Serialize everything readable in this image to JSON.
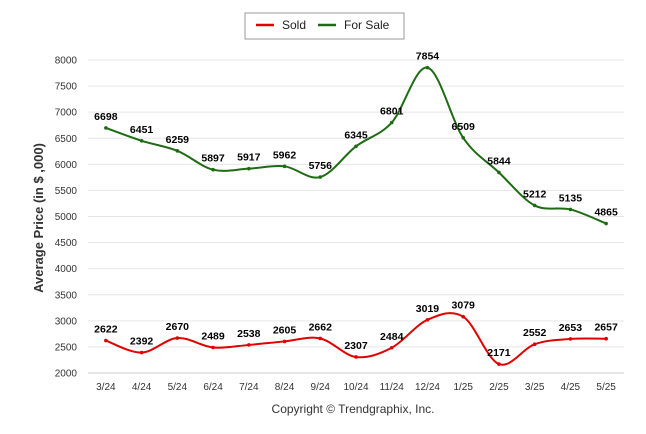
{
  "chart_data": {
    "type": "line",
    "ylabel": "Average Price (in $ ,000)",
    "xlabel": "",
    "ylim": [
      2000,
      8000
    ],
    "yticks": [
      2000,
      2500,
      3000,
      3500,
      4000,
      4500,
      5000,
      5500,
      6000,
      6500,
      7000,
      7500,
      8000
    ],
    "categories": [
      "3/24",
      "4/24",
      "5/24",
      "6/24",
      "7/24",
      "8/24",
      "9/24",
      "10/24",
      "11/24",
      "12/24",
      "1/25",
      "2/25",
      "3/25",
      "4/25",
      "5/25"
    ],
    "grid": "horizontal",
    "legend_position": "top-center",
    "series": [
      {
        "name": "Sold",
        "color": "#e00000",
        "values": [
          2622,
          2392,
          2670,
          2489,
          2538,
          2605,
          2662,
          2307,
          2484,
          3019,
          3079,
          2171,
          2552,
          2653,
          2657
        ]
      },
      {
        "name": "For Sale",
        "color": "#1e6b14",
        "values": [
          6698,
          6451,
          6259,
          5897,
          5917,
          5962,
          5756,
          6345,
          6801,
          7854,
          6509,
          5844,
          5212,
          5135,
          4865
        ]
      }
    ]
  },
  "footer": {
    "credit": "Copyright © Trendgraphix, Inc."
  }
}
